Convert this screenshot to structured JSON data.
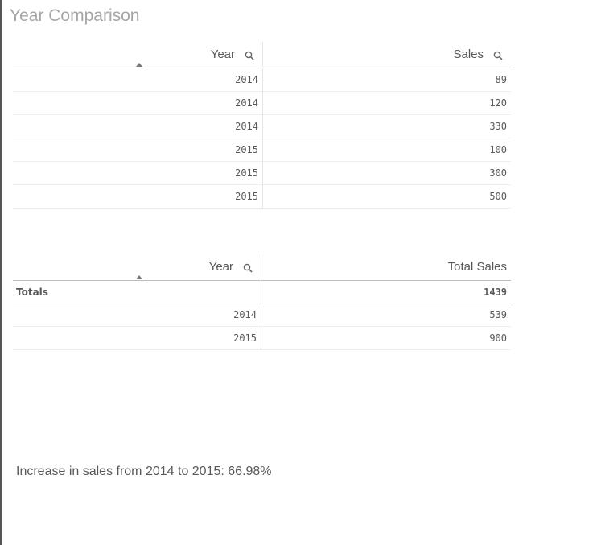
{
  "title": "Year Comparison",
  "table1": {
    "headers": [
      "Year",
      "Sales"
    ],
    "rows": [
      [
        2014,
        89
      ],
      [
        2014,
        120
      ],
      [
        2014,
        330
      ],
      [
        2015,
        100
      ],
      [
        2015,
        300
      ],
      [
        2015,
        500
      ]
    ]
  },
  "table2": {
    "headers": [
      "Year",
      "Total Sales"
    ],
    "totals": [
      "Totals",
      1439
    ],
    "rows": [
      [
        2014,
        539
      ],
      [
        2015,
        900
      ]
    ]
  },
  "note": "Increase in sales from 2014 to 2015: 66.98%"
}
